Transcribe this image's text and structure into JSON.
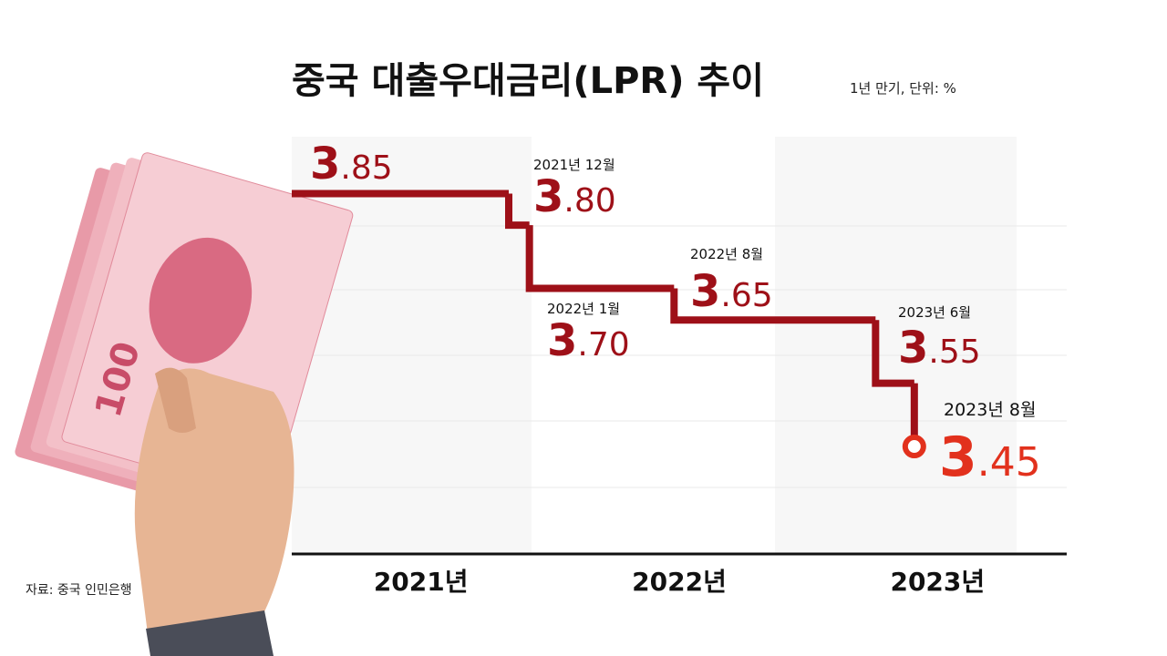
{
  "chart_data": {
    "type": "step",
    "title": "중국 대출우대금리(LPR) 추이",
    "subtitle": "1년 만기, 단위: %",
    "source": "자료: 중국 인민은행",
    "x": [
      2021.0,
      2021.84,
      2021.92,
      2022.48,
      2023.26,
      2023.41
    ],
    "values": [
      3.85,
      3.8,
      3.7,
      3.65,
      3.55,
      3.45
    ],
    "value_labels": [
      "3.85",
      "3.80",
      "3.70",
      "3.65",
      "3.55",
      "3.45"
    ],
    "point_labels": [
      null,
      "2021년 12월",
      "2022년 1월",
      "2022년 8월",
      "2023년 6월",
      "2023년 8월"
    ],
    "xlim": [
      2021,
      2024
    ],
    "xticks": [
      {
        "value": 2021.5,
        "label": "2021년"
      },
      {
        "value": 2022.5,
        "label": "2022년"
      },
      {
        "value": 2023.5,
        "label": "2023년"
      }
    ],
    "ylim": [
      3.28,
      3.94
    ],
    "color": "#9e1018",
    "highlight_color": "#e2311d"
  }
}
